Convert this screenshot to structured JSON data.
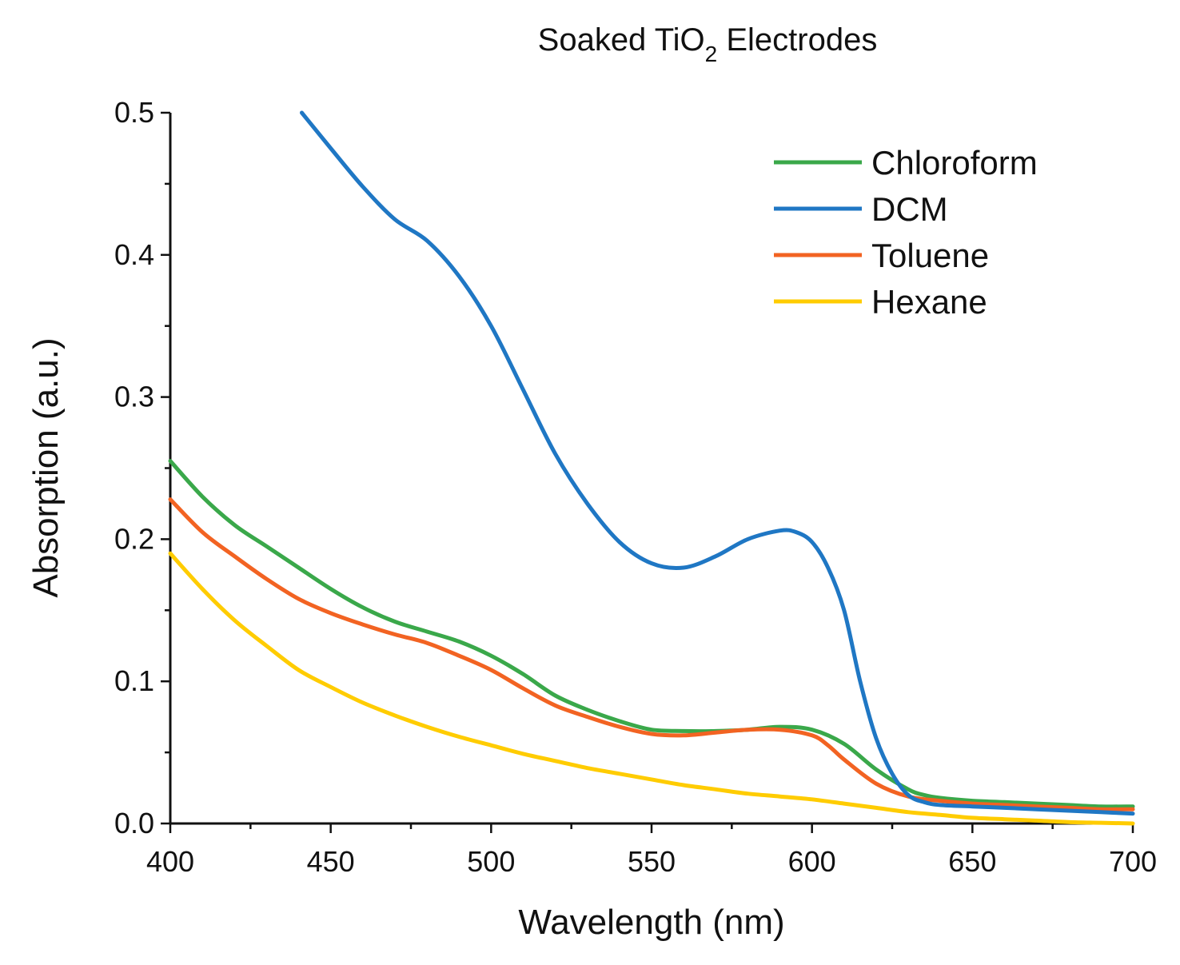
{
  "chart_data": {
    "type": "line",
    "title": {
      "main": "Soaked TiO",
      "subscript": "2",
      "suffix": " Electrodes"
    },
    "xlabel": "Wavelength (nm)",
    "ylabel": "Absorption (a.u.)",
    "xlim": [
      400,
      700
    ],
    "ylim": [
      0,
      0.5
    ],
    "xticks": [
      400,
      450,
      500,
      550,
      600,
      650,
      700
    ],
    "xtick_labels": [
      "400",
      "450",
      "500",
      "550",
      "600",
      "650",
      "700"
    ],
    "yticks": [
      0,
      0.1,
      0.2,
      0.3,
      0.4,
      0.5
    ],
    "ytick_labels": [
      "0.0",
      "0.1",
      "0.2",
      "0.3",
      "0.4",
      "0.5"
    ],
    "grid": false,
    "legend_position": "top-right",
    "series": [
      {
        "name": "Chloroform",
        "color": "#3aa84a",
        "x": [
          400,
          410,
          420,
          430,
          440,
          450,
          460,
          470,
          480,
          490,
          500,
          510,
          520,
          530,
          540,
          550,
          560,
          570,
          580,
          590,
          600,
          610,
          620,
          630,
          635,
          640,
          650,
          660,
          670,
          680,
          690,
          700
        ],
        "y": [
          0.255,
          0.23,
          0.21,
          0.195,
          0.18,
          0.165,
          0.152,
          0.142,
          0.135,
          0.128,
          0.118,
          0.105,
          0.09,
          0.08,
          0.072,
          0.066,
          0.065,
          0.065,
          0.066,
          0.068,
          0.066,
          0.056,
          0.038,
          0.024,
          0.02,
          0.018,
          0.016,
          0.015,
          0.014,
          0.013,
          0.012,
          0.012
        ]
      },
      {
        "name": "DCM",
        "color": "#1f77c4",
        "x": [
          441,
          450,
          460,
          470,
          480,
          490,
          500,
          510,
          520,
          530,
          540,
          550,
          560,
          570,
          580,
          590,
          595,
          600,
          605,
          610,
          615,
          620,
          625,
          630,
          635,
          640,
          650,
          660,
          670,
          680,
          690,
          700
        ],
        "y": [
          0.5,
          0.475,
          0.448,
          0.425,
          0.41,
          0.385,
          0.35,
          0.305,
          0.26,
          0.225,
          0.198,
          0.183,
          0.18,
          0.188,
          0.2,
          0.206,
          0.205,
          0.198,
          0.18,
          0.15,
          0.1,
          0.06,
          0.035,
          0.02,
          0.015,
          0.013,
          0.012,
          0.011,
          0.01,
          0.009,
          0.008,
          0.007
        ]
      },
      {
        "name": "Toluene",
        "color": "#f26322",
        "x": [
          400,
          410,
          420,
          430,
          440,
          450,
          460,
          470,
          480,
          490,
          500,
          510,
          520,
          530,
          540,
          550,
          560,
          570,
          580,
          590,
          600,
          605,
          610,
          620,
          630,
          640,
          650,
          660,
          670,
          680,
          690,
          700
        ],
        "y": [
          0.228,
          0.205,
          0.188,
          0.172,
          0.158,
          0.148,
          0.14,
          0.133,
          0.127,
          0.118,
          0.108,
          0.095,
          0.083,
          0.075,
          0.068,
          0.063,
          0.062,
          0.064,
          0.066,
          0.066,
          0.062,
          0.055,
          0.045,
          0.028,
          0.019,
          0.016,
          0.014,
          0.013,
          0.012,
          0.011,
          0.01,
          0.01
        ]
      },
      {
        "name": "Hexane",
        "color": "#ffcc00",
        "x": [
          400,
          410,
          420,
          430,
          440,
          450,
          460,
          470,
          480,
          490,
          500,
          510,
          520,
          530,
          540,
          550,
          560,
          570,
          580,
          590,
          600,
          610,
          620,
          630,
          640,
          650,
          660,
          670,
          680,
          690,
          700
        ],
        "y": [
          0.19,
          0.165,
          0.143,
          0.125,
          0.108,
          0.096,
          0.085,
          0.076,
          0.068,
          0.061,
          0.055,
          0.049,
          0.044,
          0.039,
          0.035,
          0.031,
          0.027,
          0.024,
          0.021,
          0.019,
          0.017,
          0.014,
          0.011,
          0.008,
          0.006,
          0.004,
          0.003,
          0.002,
          0.001,
          0.0005,
          0.0
        ]
      }
    ]
  }
}
